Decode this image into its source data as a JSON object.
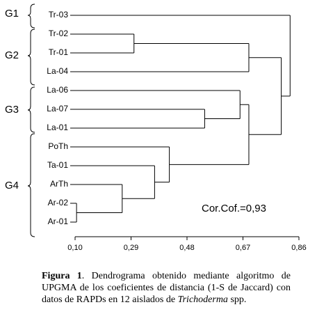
{
  "chart_data": {
    "type": "dendrogram",
    "groups": [
      "G1",
      "G2",
      "G3",
      "G4"
    ],
    "tree": {
      "height": 0.83,
      "children": [
        {
          "leaf": "Tr-03"
        },
        {
          "height": 0.8,
          "children": [
            {
              "height": 0.69,
              "children": [
                {
                  "height": 0.3,
                  "children": [
                    {
                      "leaf": "Tr-02"
                    },
                    {
                      "leaf": "Tr-01"
                    }
                  ]
                },
                {
                  "leaf": "La-04"
                }
              ]
            },
            {
              "height": 0.69,
              "children": [
                {
                  "height": 0.66,
                  "children": [
                    {
                      "leaf": "La-06"
                    },
                    {
                      "height": 0.54,
                      "children": [
                        {
                          "leaf": "La-07"
                        },
                        {
                          "leaf": "La-01"
                        }
                      ]
                    }
                  ]
                },
                {
                  "height": 0.42,
                  "children": [
                    {
                      "leaf": "PoTh"
                    },
                    {
                      "height": 0.37,
                      "children": [
                        {
                          "leaf": "Ta-01"
                        },
                        {
                          "height": 0.26,
                          "children": [
                            {
                              "leaf": "ArTh"
                            },
                            {
                              "height": 0.105,
                              "children": [
                                {
                                  "leaf": "Ar-02"
                                },
                                {
                                  "leaf": "Ar-01"
                                }
                              ]
                            }
                          ]
                        }
                      ]
                    }
                  ]
                }
              ]
            }
          ]
        }
      ]
    },
    "xlim": [
      0.1,
      0.86
    ],
    "xticks": [
      {
        "value": 0.1,
        "label": "0,10"
      },
      {
        "value": 0.29,
        "label": "0,29"
      },
      {
        "value": 0.48,
        "label": "0,48"
      },
      {
        "value": 0.67,
        "label": "0,67"
      },
      {
        "value": 0.86,
        "label": "0,86"
      }
    ],
    "annotation": "Cor.Cof.=0,93",
    "caption": {
      "label": "Figura 1",
      "text": ". Dendrograma obtenido mediante algoritmo de UPGMA de los coeficientes de distancia (1-S de Jaccard) con datos de RAPDs en 12 aislados de ",
      "italic": "Trichoderma",
      "end": " spp."
    }
  }
}
